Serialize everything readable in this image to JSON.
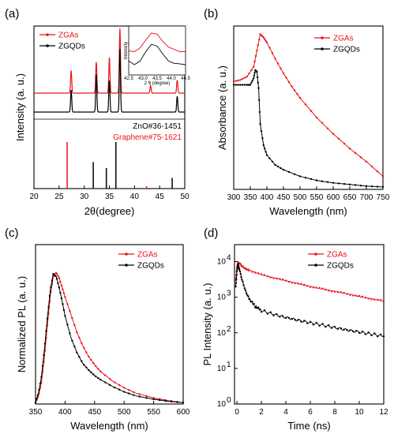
{
  "chart_data": [
    {
      "panel": "(a)",
      "type": "line",
      "xlabel": "2θ(degree)",
      "ylabel": "Intensity (a. u.)",
      "xlim": [
        20,
        50
      ],
      "xticks": [
        "20",
        "25",
        "30",
        "35",
        "40",
        "45",
        "50"
      ],
      "series": [
        {
          "name": "ZGAs",
          "color": "#e8141b",
          "peaks": [
            {
              "x": 27.4,
              "h": 0.35
            },
            {
              "x": 32.4,
              "h": 0.48
            },
            {
              "x": 35.0,
              "h": 0.55
            },
            {
              "x": 37.1,
              "h": 1.0
            },
            {
              "x": 43.2,
              "h": 0.12
            },
            {
              "x": 48.5,
              "h": 0.2
            }
          ]
        },
        {
          "name": "ZGQDs",
          "color": "#000000",
          "peaks": [
            {
              "x": 27.4,
              "h": 0.35
            },
            {
              "x": 32.4,
              "h": 0.6
            },
            {
              "x": 35.0,
              "h": 0.5
            },
            {
              "x": 37.1,
              "h": 1.0
            },
            {
              "x": 48.5,
              "h": 0.25
            }
          ]
        }
      ],
      "references": [
        {
          "name": "ZnO#36-1451",
          "color": "#000000",
          "lines": [
            {
              "x": 31.8,
              "h": 0.57
            },
            {
              "x": 34.4,
              "h": 0.44
            },
            {
              "x": 36.3,
              "h": 1.0
            },
            {
              "x": 47.5,
              "h": 0.23
            }
          ]
        },
        {
          "name": "Graphene#75-1621",
          "color": "#e8141b",
          "lines": [
            {
              "x": 26.6,
              "h": 1.0
            },
            {
              "x": 42.4,
              "h": 0.05
            }
          ]
        }
      ],
      "inset": {
        "xlabel": "2 θ (degree)",
        "ylabel": "Intensity",
        "xlim": [
          42.5,
          44.5
        ],
        "xticks": [
          "42.5",
          "43.0",
          "43.5",
          "44.0",
          "44.5"
        ],
        "series": [
          {
            "name": "ZGAs",
            "color": "#e8141b",
            "x": [
              42.5,
              42.7,
              42.9,
              43.1,
              43.3,
              43.5,
              43.7,
              43.9,
              44.1,
              44.3,
              44.5
            ],
            "y": [
              0.52,
              0.5,
              0.58,
              0.75,
              0.9,
              0.88,
              0.72,
              0.6,
              0.55,
              0.5,
              0.5
            ]
          },
          {
            "name": "ZGQDs",
            "color": "#000000",
            "x": [
              42.5,
              42.7,
              42.9,
              43.1,
              43.3,
              43.5,
              43.7,
              43.9,
              44.1,
              44.3,
              44.5
            ],
            "y": [
              0.3,
              0.22,
              0.3,
              0.5,
              0.66,
              0.62,
              0.45,
              0.3,
              0.25,
              0.24,
              0.22
            ]
          }
        ]
      }
    },
    {
      "panel": "(b)",
      "type": "line",
      "xlabel": "Wavelength (nm)",
      "ylabel": "Absorbance (a. u.)",
      "xlim": [
        300,
        750
      ],
      "xticks": [
        "300",
        "350",
        "400",
        "450",
        "500",
        "550",
        "600",
        "650",
        "700",
        "750"
      ],
      "series": [
        {
          "name": "ZGAs",
          "color": "#e8141b",
          "x": [
            300,
            320,
            340,
            360,
            370,
            380,
            390,
            400,
            425,
            450,
            475,
            500,
            550,
            600,
            650,
            700,
            750
          ],
          "y": [
            0.66,
            0.67,
            0.69,
            0.75,
            0.85,
            0.95,
            0.93,
            0.9,
            0.8,
            0.71,
            0.63,
            0.56,
            0.44,
            0.34,
            0.25,
            0.17,
            0.08
          ]
        },
        {
          "name": "ZGQDs",
          "color": "#000000",
          "x": [
            300,
            320,
            340,
            350,
            360,
            365,
            370,
            375,
            380,
            390,
            400,
            425,
            450,
            500,
            550,
            600,
            650,
            700,
            750
          ],
          "y": [
            0.64,
            0.64,
            0.64,
            0.64,
            0.68,
            0.73,
            0.72,
            0.62,
            0.4,
            0.27,
            0.21,
            0.15,
            0.12,
            0.08,
            0.055,
            0.04,
            0.03,
            0.02,
            0.015
          ]
        }
      ]
    },
    {
      "panel": "(c)",
      "type": "line",
      "xlabel": "Wavelength (nm)",
      "ylabel": "Normalized PL (a. u.)",
      "xlim": [
        350,
        600
      ],
      "xticks": [
        "350",
        "400",
        "450",
        "500",
        "550",
        "600"
      ],
      "series": [
        {
          "name": "ZGAs",
          "color": "#e8141b",
          "x": [
            350,
            355,
            360,
            365,
            370,
            375,
            380,
            385,
            390,
            395,
            400,
            410,
            420,
            430,
            440,
            450,
            460,
            480,
            500,
            520,
            550,
            575,
            600
          ],
          "y": [
            0.01,
            0.06,
            0.16,
            0.35,
            0.58,
            0.8,
            0.94,
            0.97,
            0.93,
            0.86,
            0.79,
            0.66,
            0.53,
            0.43,
            0.35,
            0.29,
            0.24,
            0.17,
            0.12,
            0.08,
            0.045,
            0.025,
            0.01
          ]
        },
        {
          "name": "ZGQDs",
          "color": "#000000",
          "x": [
            350,
            355,
            360,
            365,
            370,
            375,
            380,
            385,
            390,
            395,
            400,
            410,
            420,
            430,
            440,
            450,
            460,
            480,
            500,
            520,
            550,
            575,
            600
          ],
          "y": [
            0.01,
            0.08,
            0.2,
            0.4,
            0.63,
            0.84,
            0.96,
            0.94,
            0.86,
            0.76,
            0.65,
            0.49,
            0.38,
            0.3,
            0.25,
            0.21,
            0.18,
            0.13,
            0.09,
            0.06,
            0.035,
            0.02,
            0.01
          ]
        }
      ]
    },
    {
      "panel": "(d)",
      "type": "line",
      "xlabel": "Time (ns)",
      "ylabel": "PL Intensity (a. u.)",
      "xlim": [
        -0.2,
        12
      ],
      "ylim": [
        1,
        30000
      ],
      "yscale": "log",
      "xticks": [
        "0",
        "2",
        "4",
        "6",
        "8",
        "10",
        "12"
      ],
      "yticks": [
        "10",
        "10",
        "10",
        "10",
        "10"
      ],
      "yexp": [
        "0",
        "1",
        "2",
        "3",
        "4"
      ],
      "series": [
        {
          "name": "ZGAs",
          "color": "#e8141b",
          "x": [
            -0.1,
            0.0,
            0.1,
            0.2,
            0.4,
            0.7,
            1,
            2,
            3,
            4,
            5,
            6,
            7,
            8,
            9,
            10,
            11,
            12
          ],
          "y": [
            3000,
            6500,
            9500,
            9000,
            7500,
            6300,
            5700,
            4300,
            3500,
            2900,
            2400,
            2000,
            1700,
            1450,
            1250,
            1050,
            900,
            780
          ]
        },
        {
          "name": "ZGQDs",
          "color": "#000000",
          "x": [
            -0.1,
            0.0,
            0.1,
            0.2,
            0.4,
            0.7,
            1,
            1.5,
            2,
            3,
            4,
            5,
            6,
            7,
            8,
            9,
            10,
            11,
            12
          ],
          "y": [
            2000,
            5500,
            8500,
            6000,
            3200,
            1500,
            900,
            550,
            420,
            330,
            270,
            225,
            190,
            165,
            140,
            120,
            105,
            92,
            80
          ]
        }
      ]
    }
  ]
}
